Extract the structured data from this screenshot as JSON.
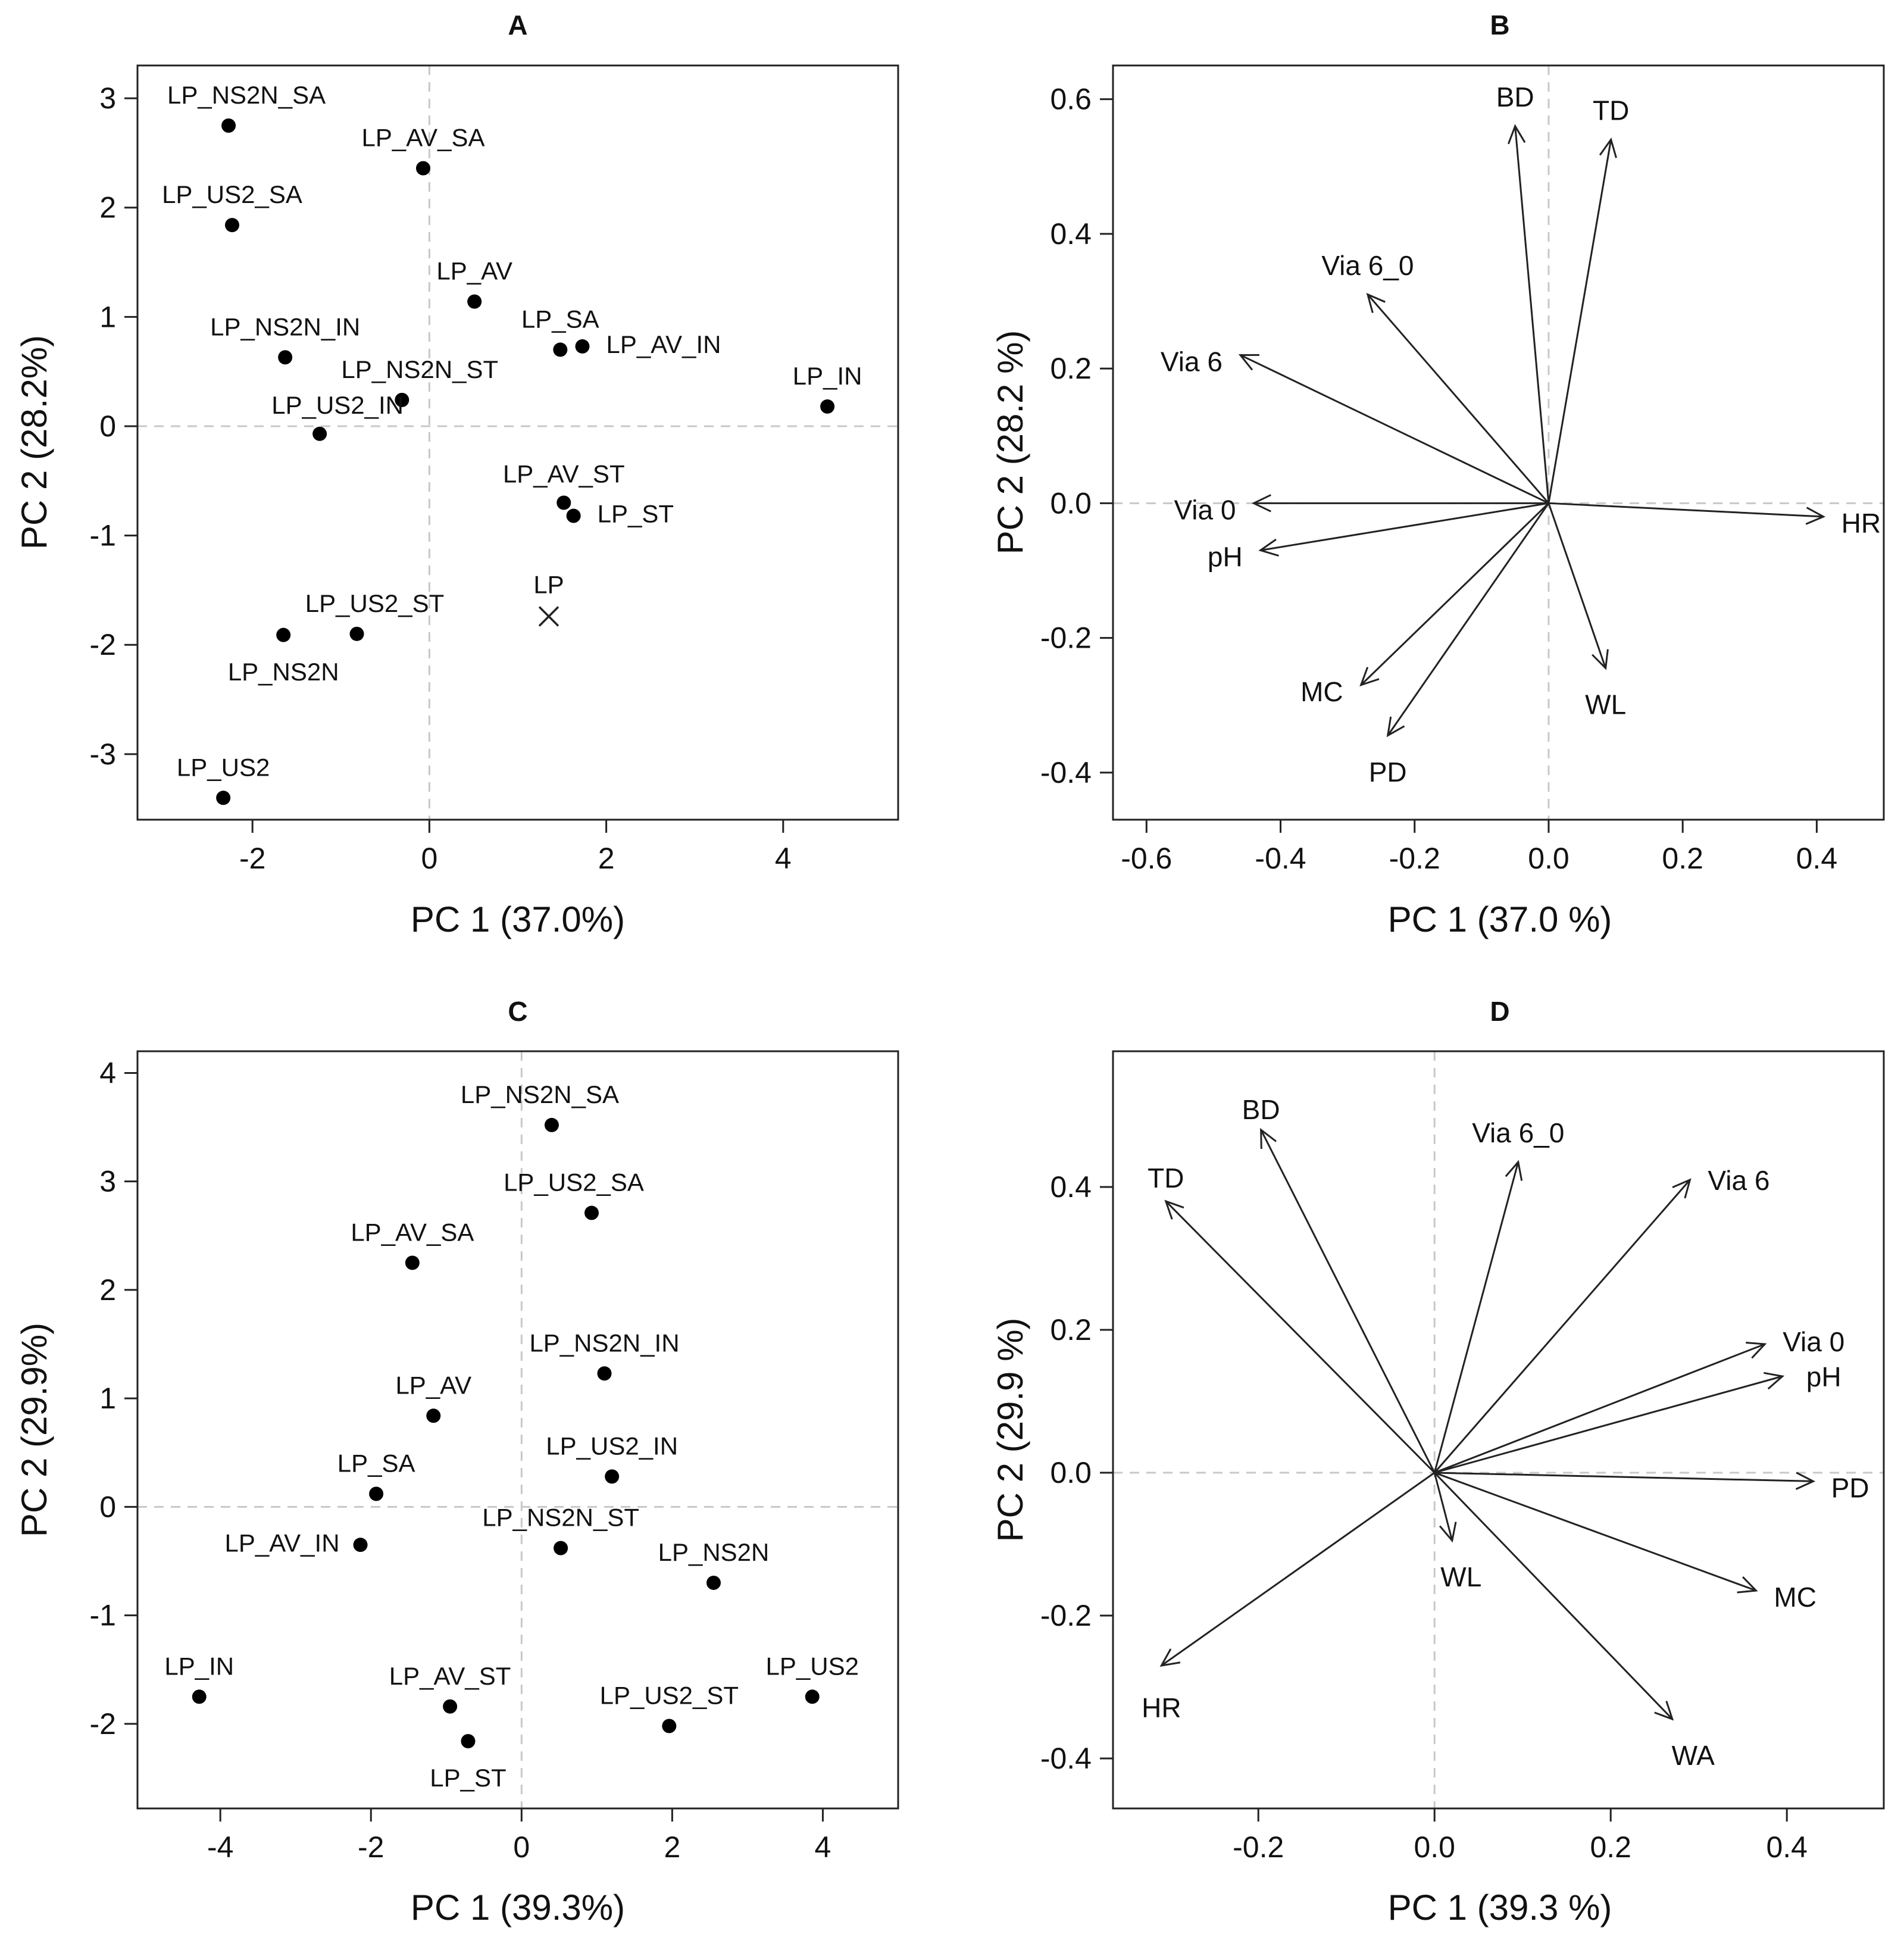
{
  "chart_data": [
    {
      "id": "A",
      "type": "scatter",
      "title": "A",
      "xlabel": "PC 1 (37.0%)",
      "ylabel": "PC 2 (28.2%)",
      "xlim": [
        -3.3,
        5.3
      ],
      "ylim": [
        -3.6,
        3.3
      ],
      "xticks": [
        -2,
        0,
        2,
        4
      ],
      "yticks": [
        -3,
        -2,
        -1,
        0,
        1,
        2,
        3
      ],
      "tick_labels_x": [
        "-2",
        "0",
        "2",
        "4"
      ],
      "tick_labels_y": [
        "-3",
        "-2",
        "-1",
        "0",
        "1",
        "2",
        "3"
      ],
      "points": [
        {
          "label": "LP_NS2N_SA",
          "x": -2.27,
          "y": 2.75,
          "marker": "dot"
        },
        {
          "label": "LP_AV_SA",
          "x": -0.07,
          "y": 2.36,
          "marker": "dot"
        },
        {
          "label": "LP_US2_SA",
          "x": -2.23,
          "y": 1.84,
          "marker": "dot"
        },
        {
          "label": "LP_AV",
          "x": 0.51,
          "y": 1.14,
          "marker": "dot"
        },
        {
          "label": "LP_SA",
          "x": 1.48,
          "y": 0.7,
          "marker": "dot"
        },
        {
          "label": "LP_AV_IN",
          "x": 1.73,
          "y": 0.73,
          "marker": "dot"
        },
        {
          "label": "LP_NS2N_IN",
          "x": -1.63,
          "y": 0.63,
          "marker": "dot"
        },
        {
          "label": "LP_NS2N_ST",
          "x": -0.31,
          "y": 0.24,
          "marker": "dot"
        },
        {
          "label": "LP_US2_IN",
          "x": -1.24,
          "y": -0.07,
          "marker": "dot"
        },
        {
          "label": "LP_IN",
          "x": 4.5,
          "y": 0.18,
          "marker": "dot"
        },
        {
          "label": "LP_AV_ST",
          "x": 1.52,
          "y": -0.7,
          "marker": "dot"
        },
        {
          "label": "LP_ST",
          "x": 1.63,
          "y": -0.82,
          "marker": "dot"
        },
        {
          "label": "LP",
          "x": 1.35,
          "y": -1.74,
          "marker": "cross"
        },
        {
          "label": "LP_US2_ST",
          "x": -0.82,
          "y": -1.9,
          "marker": "dot"
        },
        {
          "label": "LP_NS2N",
          "x": -1.65,
          "y": -1.91,
          "marker": "dot"
        },
        {
          "label": "LP_US2",
          "x": -2.33,
          "y": -3.4,
          "marker": "dot"
        }
      ]
    },
    {
      "id": "B",
      "type": "scatter",
      "title": "B",
      "xlabel": "PC 1 (37.0 %)",
      "ylabel": "PC 2 (28.2 %)",
      "xlim": [
        -0.65,
        0.5
      ],
      "ylim": [
        -0.47,
        0.65
      ],
      "xticks": [
        -0.6,
        -0.4,
        -0.2,
        0.0,
        0.2,
        0.4
      ],
      "yticks": [
        -0.4,
        -0.2,
        0.0,
        0.2,
        0.4,
        0.6
      ],
      "tick_labels_x": [
        "-0.6",
        "-0.4",
        "-0.2",
        "0.0",
        "0.2",
        "0.4"
      ],
      "tick_labels_y": [
        "-0.4",
        "-0.2",
        "0.0",
        "0.2",
        "0.4",
        "0.6"
      ],
      "vectors": [
        {
          "label": "BD",
          "x": -0.05,
          "y": 0.56
        },
        {
          "label": "TD",
          "x": 0.093,
          "y": 0.54
        },
        {
          "label": "Via 6_0",
          "x": -0.27,
          "y": 0.31
        },
        {
          "label": "Via 6",
          "x": -0.46,
          "y": 0.22
        },
        {
          "label": "Via 0",
          "x": -0.44,
          "y": 0.0
        },
        {
          "label": "HR",
          "x": 0.41,
          "y": -0.02
        },
        {
          "label": "pH",
          "x": -0.43,
          "y": -0.07
        },
        {
          "label": "MC",
          "x": -0.28,
          "y": -0.27
        },
        {
          "label": "WL",
          "x": 0.085,
          "y": -0.245
        },
        {
          "label": "PD",
          "x": -0.24,
          "y": -0.345
        }
      ]
    },
    {
      "id": "C",
      "type": "scatter",
      "title": "C",
      "xlabel": "PC 1 (39.3%)",
      "ylabel": "PC 2 (29.9%)",
      "xlim": [
        -5.1,
        5.0
      ],
      "ylim": [
        -2.78,
        4.2
      ],
      "xticks": [
        -4,
        -2,
        0,
        2,
        4
      ],
      "yticks": [
        -2,
        -1,
        0,
        1,
        2,
        3,
        4
      ],
      "tick_labels_x": [
        "-4",
        "-2",
        "0",
        "2",
        "4"
      ],
      "tick_labels_y": [
        "-2",
        "-1",
        "0",
        "1",
        "2",
        "3",
        "4"
      ],
      "points": [
        {
          "label": "LP_NS2N_SA",
          "x": 0.4,
          "y": 3.52,
          "marker": "dot"
        },
        {
          "label": "LP_US2_SA",
          "x": 0.93,
          "y": 2.71,
          "marker": "dot"
        },
        {
          "label": "LP_AV_SA",
          "x": -1.45,
          "y": 2.25,
          "marker": "dot"
        },
        {
          "label": "LP_NS2N_IN",
          "x": 1.1,
          "y": 1.23,
          "marker": "dot"
        },
        {
          "label": "LP_AV",
          "x": -1.17,
          "y": 0.84,
          "marker": "dot"
        },
        {
          "label": "LP_US2_IN",
          "x": 1.2,
          "y": 0.28,
          "marker": "dot"
        },
        {
          "label": "LP_SA",
          "x": -1.93,
          "y": 0.12,
          "marker": "dot"
        },
        {
          "label": "LP_NS2N_ST",
          "x": 0.52,
          "y": -0.38,
          "marker": "dot"
        },
        {
          "label": "LP_AV_IN",
          "x": -2.14,
          "y": -0.35,
          "marker": "dot"
        },
        {
          "label": "LP_NS2N",
          "x": 2.55,
          "y": -0.7,
          "marker": "dot"
        },
        {
          "label": "LP_IN",
          "x": -4.28,
          "y": -1.75,
          "marker": "dot"
        },
        {
          "label": "LP_AV_ST",
          "x": -0.95,
          "y": -1.84,
          "marker": "dot"
        },
        {
          "label": "LP_US2_ST",
          "x": 1.96,
          "y": -2.02,
          "marker": "dot"
        },
        {
          "label": "LP_ST",
          "x": -0.71,
          "y": -2.16,
          "marker": "dot"
        },
        {
          "label": "LP_US2",
          "x": 3.86,
          "y": -1.75,
          "marker": "dot"
        }
      ]
    },
    {
      "id": "D",
      "type": "scatter",
      "title": "D",
      "xlabel": "PC 1 (39.3 %)",
      "ylabel": "PC 2 (29.9 %)",
      "xlim": [
        -0.365,
        0.51
      ],
      "ylim": [
        -0.47,
        0.59
      ],
      "xticks": [
        -0.2,
        0.0,
        0.2,
        0.4
      ],
      "yticks": [
        -0.4,
        -0.2,
        0.0,
        0.2,
        0.4
      ],
      "tick_labels_x": [
        "-0.2",
        "0.0",
        "0.2",
        "0.4"
      ],
      "tick_labels_y": [
        "-0.4",
        "-0.2",
        "0.0",
        "0.2",
        "0.4"
      ],
      "vectors": [
        {
          "label": "BD",
          "x": -0.197,
          "y": 0.48
        },
        {
          "label": "TD",
          "x": -0.305,
          "y": 0.38
        },
        {
          "label": "Via 6_0",
          "x": 0.095,
          "y": 0.435
        },
        {
          "label": "Via 6",
          "x": 0.29,
          "y": 0.41
        },
        {
          "label": "Via 0",
          "x": 0.375,
          "y": 0.18
        },
        {
          "label": "pH",
          "x": 0.395,
          "y": 0.135
        },
        {
          "label": "PD",
          "x": 0.43,
          "y": -0.012
        },
        {
          "label": "WL",
          "x": 0.02,
          "y": -0.095
        },
        {
          "label": "MC",
          "x": 0.365,
          "y": -0.165
        },
        {
          "label": "HR",
          "x": -0.31,
          "y": -0.27
        },
        {
          "label": "WA",
          "x": 0.27,
          "y": -0.345
        }
      ]
    }
  ]
}
